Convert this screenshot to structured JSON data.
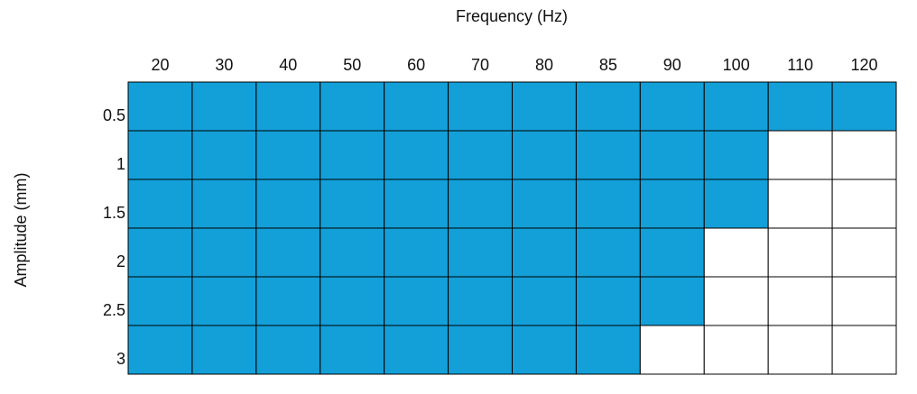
{
  "chart_data": {
    "type": "heatmap",
    "x_label": "Frequency (Hz)",
    "y_label": "Amplitude (mm)",
    "x_categories": [
      "20",
      "30",
      "40",
      "50",
      "60",
      "70",
      "80",
      "85",
      "90",
      "100",
      "110",
      "120"
    ],
    "y_categories": [
      "0.5",
      "1",
      "1.5",
      "2",
      "2.5",
      "3"
    ],
    "values": [
      [
        1,
        1,
        1,
        1,
        1,
        1,
        1,
        1,
        1,
        1,
        1,
        1
      ],
      [
        1,
        1,
        1,
        1,
        1,
        1,
        1,
        1,
        1,
        1,
        0,
        0
      ],
      [
        1,
        1,
        1,
        1,
        1,
        1,
        1,
        1,
        1,
        1,
        0,
        0
      ],
      [
        1,
        1,
        1,
        1,
        1,
        1,
        1,
        1,
        1,
        0,
        0,
        0
      ],
      [
        1,
        1,
        1,
        1,
        1,
        1,
        1,
        1,
        1,
        0,
        0,
        0
      ],
      [
        1,
        1,
        1,
        1,
        1,
        1,
        1,
        1,
        0,
        0,
        0,
        0
      ]
    ],
    "colors": [
      "#ffffff",
      "#139fd8"
    ]
  }
}
